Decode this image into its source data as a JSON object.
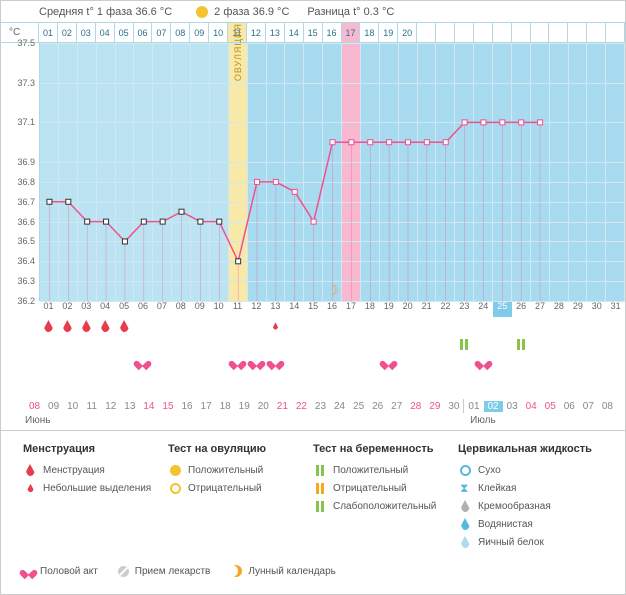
{
  "header": {
    "phase1_label": "Средняя t° 1 фаза 36.6 °C",
    "phase2_label": "2 фаза 36.9 °C",
    "diff_label": "Разница t° 0.3 °C",
    "sun_color": "#f4c430"
  },
  "chart": {
    "y_unit": "°C",
    "y_min": 36.2,
    "y_max": 37.5,
    "y_ticks": [
      "37.5",
      "37.3",
      "37.1",
      "36.9",
      "36.8",
      "36.7",
      "36.6",
      "36.5",
      "36.4",
      "36.3",
      "36.2"
    ],
    "y_tick_vals": [
      37.5,
      37.3,
      37.1,
      36.9,
      36.8,
      36.7,
      36.6,
      36.5,
      36.4,
      36.3,
      36.2
    ],
    "days_top": [
      "01",
      "02",
      "03",
      "04",
      "05",
      "06",
      "07",
      "08",
      "09",
      "10",
      "11",
      "12",
      "13",
      "14",
      "15",
      "16",
      "17",
      "18",
      "19",
      "20"
    ],
    "ovulation_day_index": 10,
    "ovulation_label": "ОВУЛЯЦИЯ",
    "highlight_pink_index": 16,
    "phase1_bg": "#bce3f2",
    "phase2_bg": "#a8daf0",
    "ovulation_bg": "#f9e9a8",
    "pink_bg": "#f8b8d0",
    "line_color": "#f05090",
    "marker_border": "#333333",
    "temps": [
      36.7,
      36.7,
      36.6,
      36.6,
      36.5,
      36.6,
      36.6,
      36.65,
      36.6,
      36.6,
      36.4,
      36.8,
      36.8,
      36.75,
      36.6,
      37.0,
      37.0,
      37.0,
      37.0,
      37.0,
      37.0,
      37.0,
      37.1,
      37.1,
      37.1,
      37.1,
      37.1,
      null,
      null,
      null,
      null
    ],
    "moon_day_index": 15,
    "moon_color": "#f5a623"
  },
  "x_days": [
    "01",
    "02",
    "03",
    "04",
    "05",
    "06",
    "07",
    "08",
    "09",
    "10",
    "11",
    "12",
    "13",
    "14",
    "15",
    "16",
    "17",
    "18",
    "19",
    "20",
    "21",
    "22",
    "23",
    "24",
    "25",
    "26",
    "27",
    "28",
    "29",
    "30",
    "31"
  ],
  "x_highlight_index": 24,
  "menstruation_days": [
    0,
    1,
    2,
    3,
    4
  ],
  "small_discharge_days": [
    12
  ],
  "intercourse_days": [
    5,
    10,
    11,
    12,
    18,
    23
  ],
  "preg_test": {
    "22": "pos",
    "25": "pos"
  },
  "colors": {
    "menstr": "#e73c4e",
    "small_discharge": "#e73c4e",
    "heart": "#f05090",
    "ovul_pos": "#f4c430",
    "ovul_neg": "#f4c430",
    "preg_pos": "#8bc34a",
    "preg_neg": "#f5a623",
    "preg_weak": "#8bc34a",
    "dry": "#5ab8e0",
    "sticky": "#5ab8e0",
    "creamy": "#b0b0b0",
    "watery": "#5ab8e0",
    "eggwhite": "#5ab8e0"
  },
  "calendar": {
    "days": [
      "08",
      "09",
      "10",
      "11",
      "12",
      "13",
      "14",
      "15",
      "16",
      "17",
      "18",
      "19",
      "20",
      "21",
      "22",
      "23",
      "24",
      "25",
      "26",
      "27",
      "28",
      "29",
      "30",
      "|",
      "01",
      "02",
      "03",
      "04",
      "05",
      "06",
      "07",
      "08"
    ],
    "pink_idx": [
      0,
      6,
      7,
      13,
      14,
      20,
      21,
      27,
      28
    ],
    "hl_idx": 25,
    "month1": "Июнь",
    "month2": "Июль"
  },
  "legend": {
    "menstr_title": "Менструация",
    "menstr_item": "Менструация",
    "small_item": "Небольшие выделения",
    "ovul_title": "Тест на овуляцию",
    "ovul_pos": "Положительный",
    "ovul_neg": "Отрицательный",
    "preg_title": "Тест на беременность",
    "preg_pos": "Положительный",
    "preg_neg": "Отрицательный",
    "preg_weak": "Слабоположительный",
    "cerv_title": "Цервикальная жидкость",
    "cerv_dry": "Сухо",
    "cerv_sticky": "Клейкая",
    "cerv_creamy": "Кремообразная",
    "cerv_watery": "Водянистая",
    "cerv_egg": "Яичный белок",
    "intercourse": "Половой акт",
    "meds": "Прием лекарств",
    "lunar": "Лунный календарь"
  }
}
